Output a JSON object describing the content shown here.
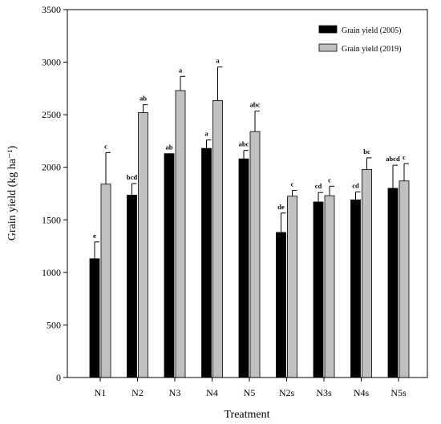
{
  "chart_data": {
    "type": "bar",
    "xlabel": "Treatment",
    "ylabel": "Grain yield (kg ha⁻¹)",
    "ylim": [
      0,
      3500
    ],
    "yticks": [
      0,
      500,
      1000,
      1500,
      2000,
      2500,
      3000,
      3500
    ],
    "categories": [
      "N1",
      "N2",
      "N3",
      "N4",
      "N5",
      "N2s",
      "N3s",
      "N4s",
      "N5s"
    ],
    "legend_position": "top-right",
    "series": [
      {
        "name": "Grain yield (2005)",
        "color": "#000000",
        "values": [
          1130,
          1735,
          2130,
          2180,
          2080,
          1380,
          1670,
          1690,
          1800
        ],
        "errors": [
          160,
          110,
          0,
          80,
          80,
          185,
          90,
          75,
          220
        ],
        "labels": [
          "e",
          "bcd",
          "ab",
          "a",
          "abc",
          "de",
          "cd",
          "cd",
          "abcd"
        ]
      },
      {
        "name": "Grain yield (2019)",
        "color": "#c0c0c0",
        "values": [
          1840,
          2520,
          2730,
          2635,
          2340,
          1725,
          1730,
          1980,
          1870
        ],
        "errors": [
          300,
          75,
          135,
          320,
          195,
          55,
          90,
          110,
          165
        ],
        "labels": [
          "c",
          "ab",
          "a",
          "a",
          "abc",
          "c",
          "c",
          "bc",
          "c"
        ]
      }
    ]
  }
}
